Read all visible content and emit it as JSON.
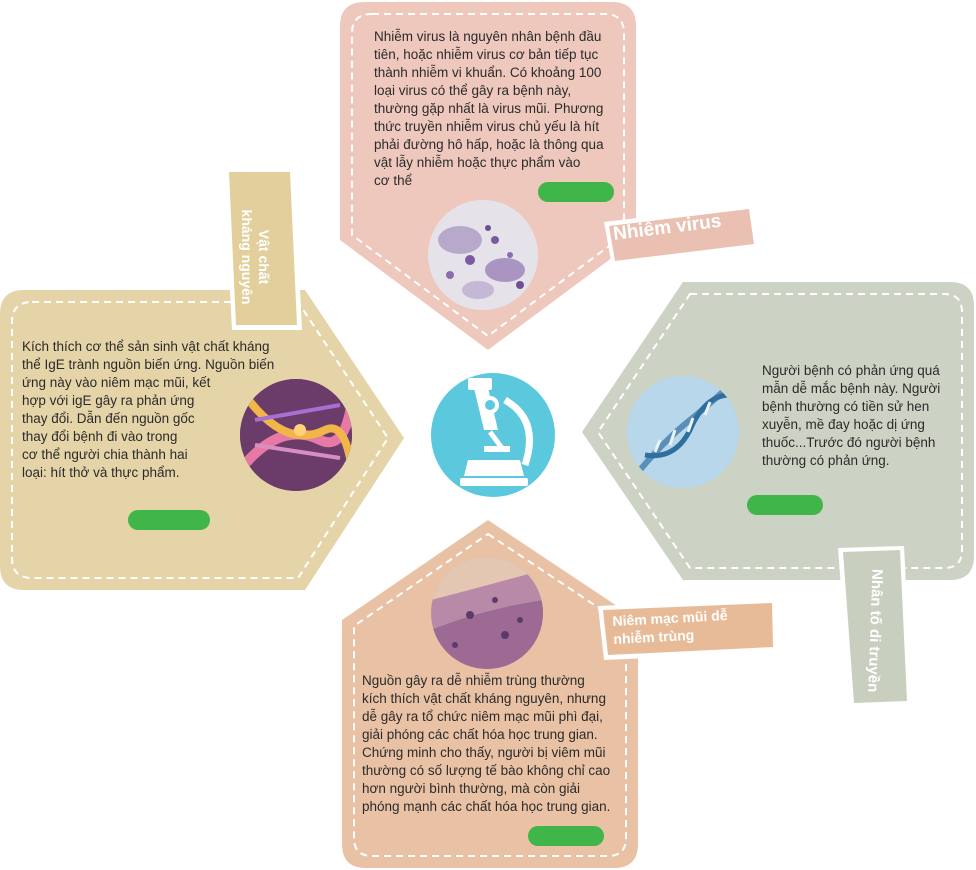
{
  "colors": {
    "top": "#eec8bd",
    "left": "#e5d4a8",
    "right": "#cdd3c4",
    "bottom": "#e9c2a5",
    "center": "#5bc8de",
    "button": "#3fb54a"
  },
  "center_icon": "microscope-icon",
  "sections": {
    "virus": {
      "label": "Nhiễm virus",
      "text": "Nhiễm virus là nguyên nhân bệnh đầu\ntiên, hoặc nhiễm virus cơ bản tiếp tục\nthành nhiễm vi khuẩn. Có khoảng 100\nloại virus có thể gây ra bệnh này,\nthường gặp nhất là virus mũi. Phương\nthức truyền nhiễm virus chủ yếu là hít\nphải đường hô hấp, hoặc là thông qua\nvật lẫy nhiễm hoặc thực phẩm vào\ncơ thể"
    },
    "antigen": {
      "label_line1": "Vật chất",
      "label_line2": "kháng nguyên",
      "text": "Kích thích cơ thể sản sinh vật chất kháng\nthể IgE trành nguồn biến ứng. Nguồn biến\nứng này  vào niêm mạc mũi, kết\nhợp với igE gây ra phản ứng\nthay đổi. Dẫn đến nguồn gốc\n thay đổi bệnh đi vào trong\ncơ thể người chia thành hai\nloại: hít thở và thực phẩm."
    },
    "genetic": {
      "label": "Nhân tố di truyền",
      "text": "Người bệnh có phản ứng quá\nmẫn dễ mắc bệnh này. Người\nbệnh thường có tiền sử hen\nxuyễn, mề đay hoặc dị ứng\nthuốc...Trước đó người bệnh\nthường có phản ứng."
    },
    "mucosa": {
      "label_line1": "Niêm mạc mũi dễ",
      "label_line2": "nhiễm trùng",
      "text": "   Nguồn gây ra dễ nhiễm trùng thường\nkích thích vật chất kháng nguyên, nhưng\ndễ gây ra tổ chức niêm mạc mũi phì đại,\ngiải phóng các chất hóa học trung gian.\nChứng minh cho thấy, người bị viêm mũi\nthường có số lượng tế bào không chỉ cao\nhơn người bình thường, mà còn giải\nphóng mạnh các chất hóa học trung gian."
    }
  }
}
